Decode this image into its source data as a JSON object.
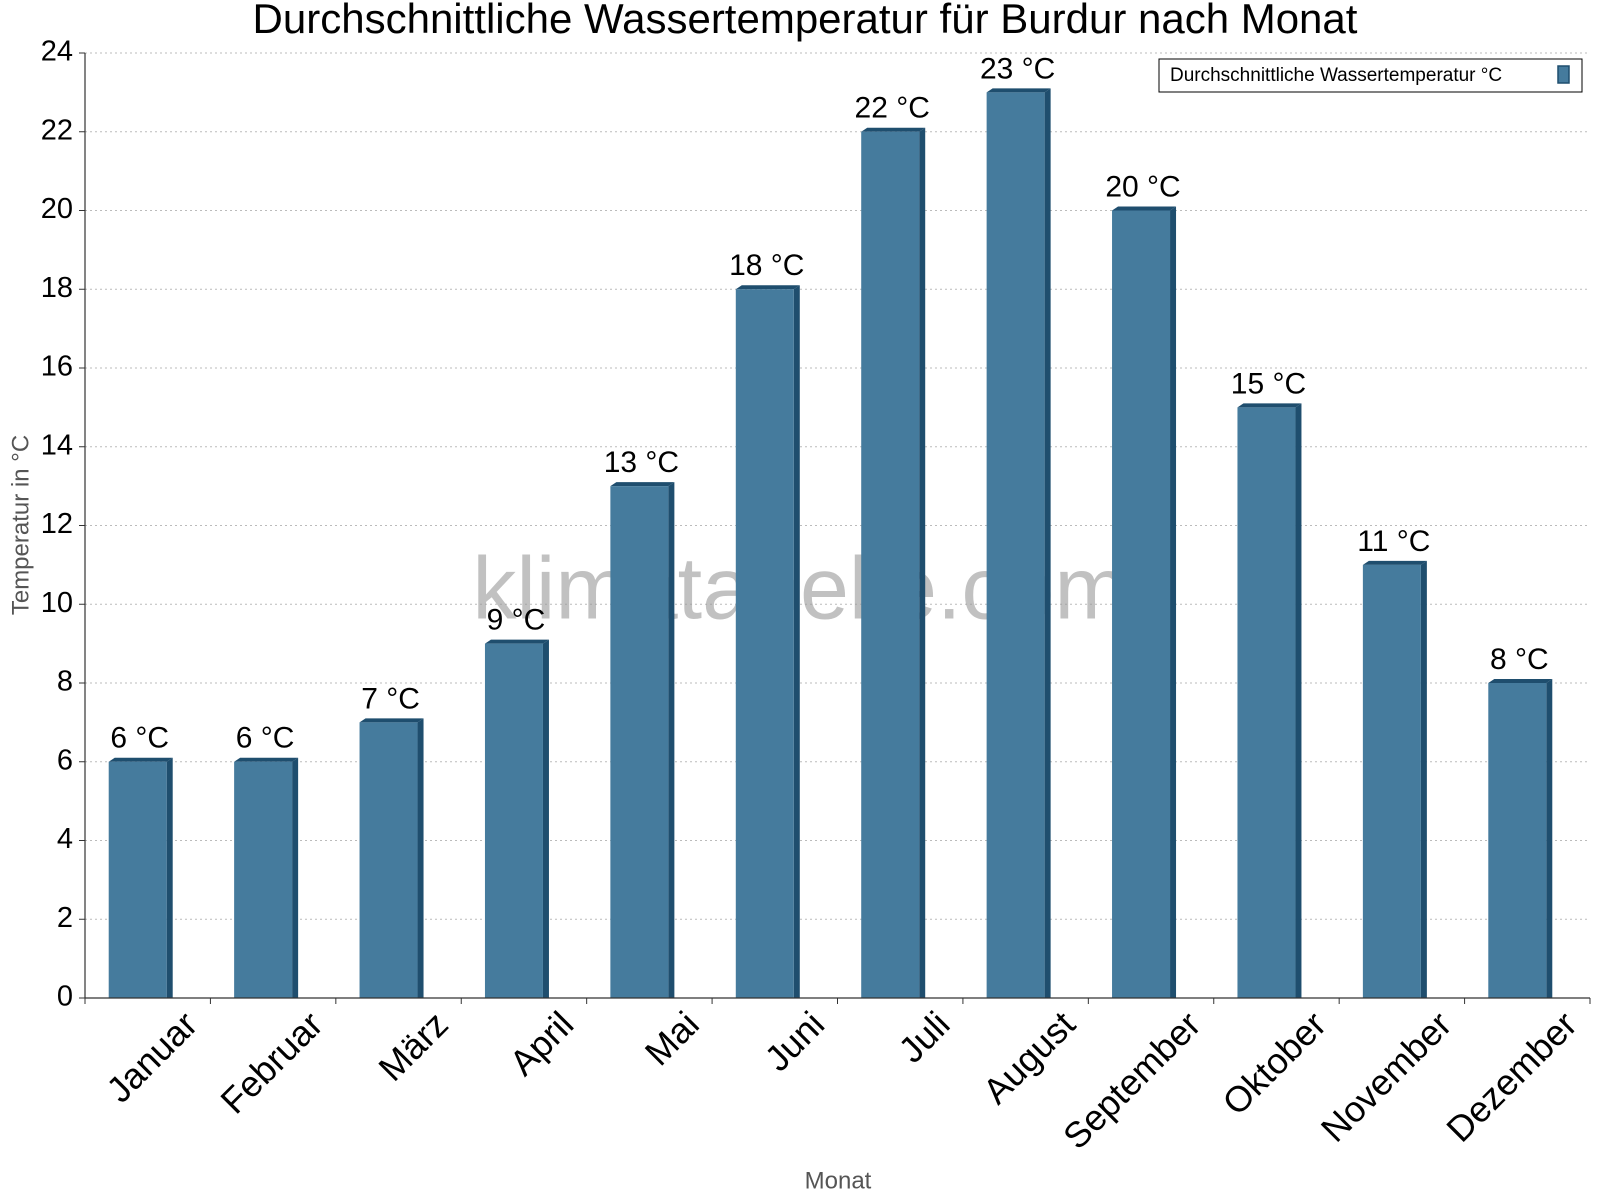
{
  "chart_data": {
    "type": "bar",
    "title": "Durchschnittliche Wassertemperatur für Burdur nach Monat",
    "x_label": "Monat",
    "y_label": "Temperatur in °C",
    "watermark": "klimatabelle.com",
    "categories": [
      "Januar",
      "Februar",
      "März",
      "April",
      "Mai",
      "Juni",
      "Juli",
      "August",
      "September",
      "Oktober",
      "November",
      "Dezember"
    ],
    "series": [
      {
        "name": "Durchschnittliche Wassertemperatur °C",
        "color": "#457b9d",
        "values": [
          6,
          6,
          7,
          9,
          13,
          18,
          22,
          23,
          20,
          15,
          11,
          8
        ],
        "value_labels": [
          "6 °C",
          "6 °C",
          "7 °C",
          "9 °C",
          "13 °C",
          "18 °C",
          "22 °C",
          "23 °C",
          "20 °C",
          "15 °C",
          "11 °C",
          "8 °C"
        ]
      }
    ],
    "ylim": [
      0,
      24
    ],
    "yticks": [
      0,
      2,
      4,
      6,
      8,
      10,
      12,
      14,
      16,
      18,
      20,
      22,
      24
    ],
    "grid": true,
    "legend": "top-right"
  }
}
